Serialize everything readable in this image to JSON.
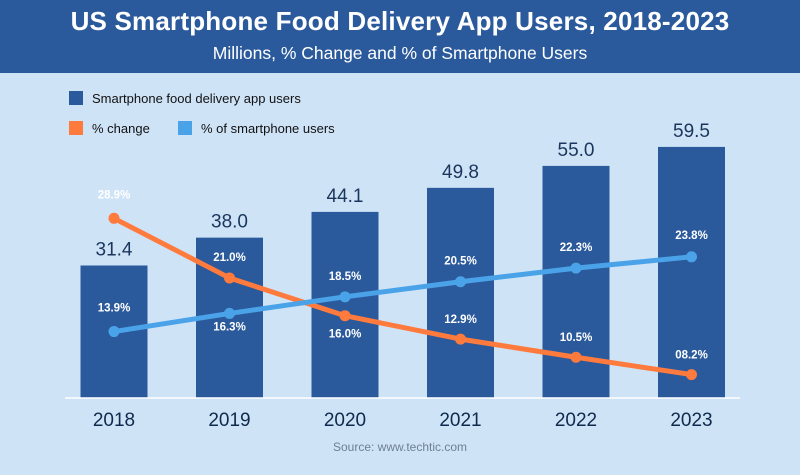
{
  "header": {
    "title": "US Smartphone Food Delivery App Users, 2018-2023",
    "subtitle": "Millions, % Change and % of Smartphone Users"
  },
  "source": "Source: www.techtic.com",
  "colors": {
    "bar": "#2b5a9c",
    "pct_change": "#ff7a3d",
    "pct_users": "#4aa3e8",
    "background": "#cfe3f7",
    "header": "#2b5a9c"
  },
  "chart_data": {
    "type": "bar",
    "title": "US Smartphone Food Delivery App Users, 2018-2023",
    "subtitle": "Millions, % Change and % of Smartphone Users",
    "categories": [
      "2018",
      "2019",
      "2020",
      "2021",
      "2022",
      "2023"
    ],
    "xlabel": "",
    "ylabel": "",
    "ylim": [
      0,
      65
    ],
    "grid": false,
    "legend_position": "top-left",
    "series": [
      {
        "name": "Smartphone food delivery app users",
        "kind": "bar",
        "values": [
          31.4,
          38.0,
          44.1,
          49.8,
          55.0,
          59.5
        ],
        "labels": [
          "31.4",
          "38.0",
          "44.1",
          "49.8",
          "55.0",
          "59.5"
        ]
      },
      {
        "name": "% change",
        "kind": "line",
        "values": [
          28.9,
          21.0,
          16.0,
          12.9,
          10.5,
          8.2
        ],
        "labels": [
          "28.9%",
          "21.0%",
          "16.0%",
          "12.9%",
          "10.5%",
          "08.2%"
        ]
      },
      {
        "name": "% of smartphone users",
        "kind": "line",
        "values": [
          13.9,
          16.3,
          18.5,
          20.5,
          22.3,
          23.8
        ],
        "labels": [
          "13.9%",
          "16.3%",
          "18.5%",
          "20.5%",
          "22.3%",
          "23.8%"
        ]
      }
    ]
  }
}
